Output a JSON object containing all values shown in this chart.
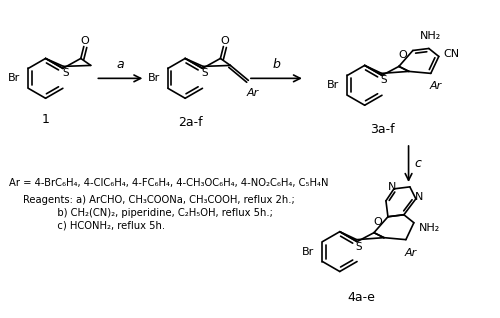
{
  "bg_color": "#ffffff",
  "ar_line": "Ar = 4-BrC₆H₄, 4-ClC₆H₄, 4-FC₆H₄, 4-CH₃OC₆H₄, 4-NO₂C₆H₄, C₅H₄N",
  "reagents_a": "Reagents: a) ArCHO, CH₃COONa, CH₃COOH, reflux 2h.;",
  "reagents_b": "           b) CH₂(CN)₂, piperidine, C₂H₅OH, reflux 5h.;",
  "reagents_c": "           c) HCONH₂, reflux 5h.",
  "label_1": "1",
  "label_2af": "2a-f",
  "label_3af": "3a-f",
  "label_4ae": "4a-e",
  "arrow_a": "a",
  "arrow_b": "b",
  "arrow_c": "c",
  "figsize": [
    5.0,
    3.18
  ],
  "dpi": 100
}
